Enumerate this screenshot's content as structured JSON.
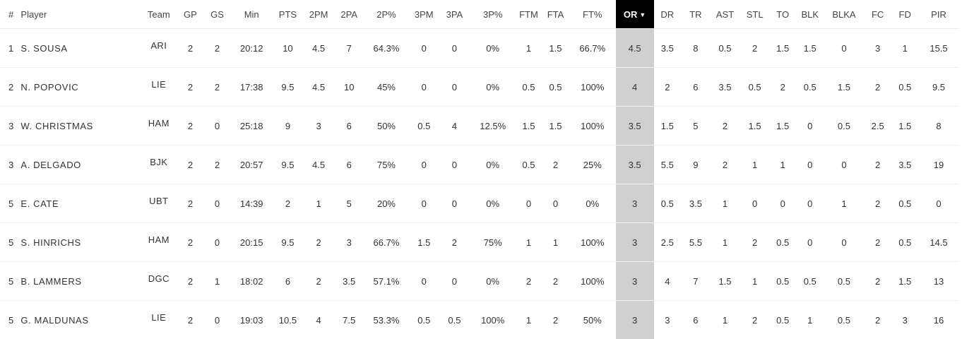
{
  "columns": [
    "#",
    "Player",
    "Team",
    "GP",
    "GS",
    "Min",
    "PTS",
    "2PM",
    "2PA",
    "2P%",
    "3PM",
    "3PA",
    "3P%",
    "FTM",
    "FTA",
    "FT%",
    "OR",
    "DR",
    "TR",
    "AST",
    "STL",
    "TO",
    "BLK",
    "BLKA",
    "FC",
    "FD",
    "PIR"
  ],
  "sort": {
    "column": "OR",
    "direction_icon": "▼"
  },
  "colors": {
    "sorted_header_bg": "#000000",
    "sorted_header_text": "#ffffff",
    "sorted_column_bg": "#d0d0d0"
  },
  "rows": [
    [
      "1",
      "S. SOUSA",
      "ARI",
      "2",
      "2",
      "20:12",
      "10",
      "4.5",
      "7",
      "64.3%",
      "0",
      "0",
      "0%",
      "1",
      "1.5",
      "66.7%",
      "4.5",
      "3.5",
      "8",
      "0.5",
      "2",
      "1.5",
      "1.5",
      "0",
      "3",
      "1",
      "15.5"
    ],
    [
      "2",
      "N. POPOVIC",
      "LIE",
      "2",
      "2",
      "17:38",
      "9.5",
      "4.5",
      "10",
      "45%",
      "0",
      "0",
      "0%",
      "0.5",
      "0.5",
      "100%",
      "4",
      "2",
      "6",
      "3.5",
      "0.5",
      "2",
      "0.5",
      "1.5",
      "2",
      "0.5",
      "9.5"
    ],
    [
      "3",
      "W. CHRISTMAS",
      "HAM",
      "2",
      "0",
      "25:18",
      "9",
      "3",
      "6",
      "50%",
      "0.5",
      "4",
      "12.5%",
      "1.5",
      "1.5",
      "100%",
      "3.5",
      "1.5",
      "5",
      "2",
      "1.5",
      "1.5",
      "0",
      "0.5",
      "2.5",
      "1.5",
      "8"
    ],
    [
      "3",
      "A. DELGADO",
      "BJK",
      "2",
      "2",
      "20:57",
      "9.5",
      "4.5",
      "6",
      "75%",
      "0",
      "0",
      "0%",
      "0.5",
      "2",
      "25%",
      "3.5",
      "5.5",
      "9",
      "2",
      "1",
      "1",
      "0",
      "0",
      "2",
      "3.5",
      "19"
    ],
    [
      "5",
      "E. CATE",
      "UBT",
      "2",
      "0",
      "14:39",
      "2",
      "1",
      "5",
      "20%",
      "0",
      "0",
      "0%",
      "0",
      "0",
      "0%",
      "3",
      "0.5",
      "3.5",
      "1",
      "0",
      "0",
      "0",
      "1",
      "2",
      "0.5",
      "0"
    ],
    [
      "5",
      "S. HINRICHS",
      "HAM",
      "2",
      "0",
      "20:15",
      "9.5",
      "2",
      "3",
      "66.7%",
      "1.5",
      "2",
      "75%",
      "1",
      "1",
      "100%",
      "3",
      "2.5",
      "5.5",
      "1",
      "2",
      "0.5",
      "0",
      "0",
      "2",
      "0.5",
      "14.5"
    ],
    [
      "5",
      "B. LAMMERS",
      "DGC",
      "2",
      "1",
      "18:02",
      "6",
      "2",
      "3.5",
      "57.1%",
      "0",
      "0",
      "0%",
      "2",
      "2",
      "100%",
      "3",
      "4",
      "7",
      "1.5",
      "1",
      "0.5",
      "0.5",
      "0.5",
      "2",
      "1.5",
      "13"
    ],
    [
      "5",
      "G. MALDUNAS",
      "LIE",
      "2",
      "0",
      "19:03",
      "10.5",
      "4",
      "7.5",
      "53.3%",
      "0.5",
      "0.5",
      "100%",
      "1",
      "2",
      "50%",
      "3",
      "3",
      "6",
      "1",
      "2",
      "0.5",
      "1",
      "0.5",
      "2",
      "3",
      "16"
    ]
  ]
}
